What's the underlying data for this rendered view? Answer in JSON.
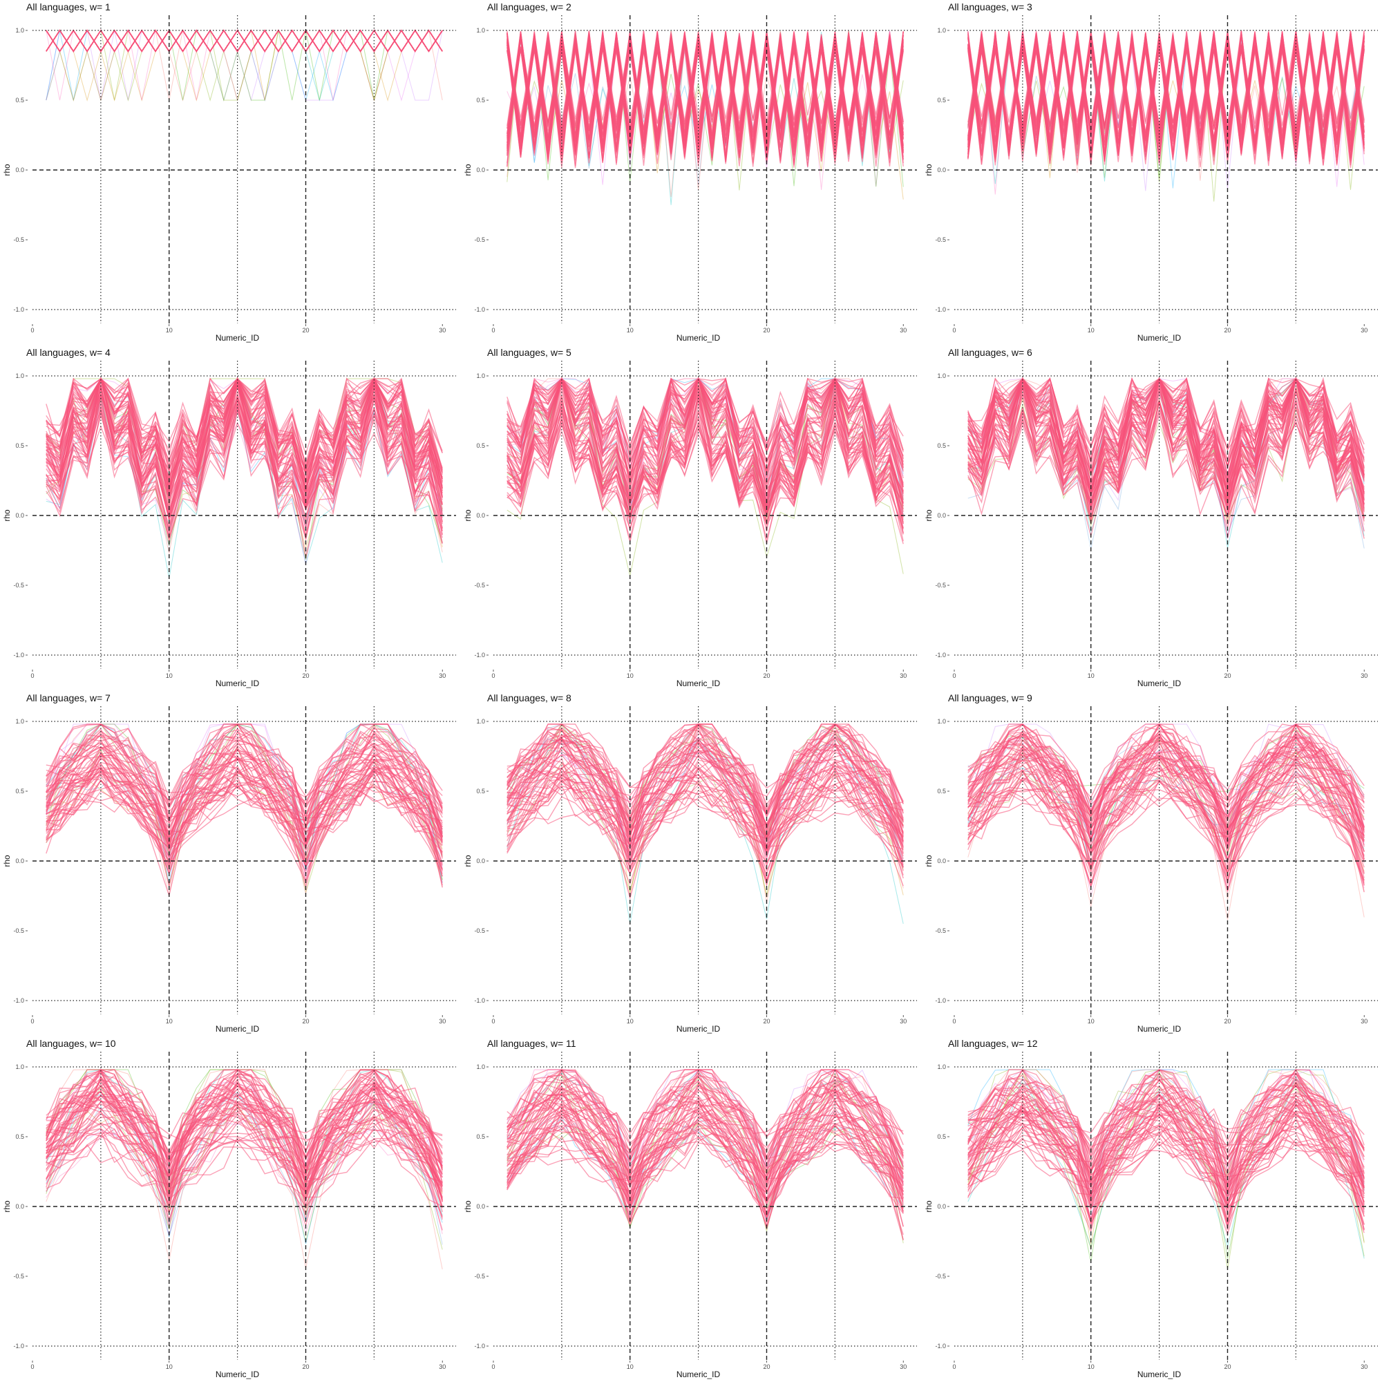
{
  "chart_data": [
    {
      "type": "line",
      "title": "All languages, w= 1",
      "xlabel": "Numeric_ID",
      "ylabel": "rho",
      "xlim": [
        0,
        31
      ],
      "ylim": [
        -1.0,
        1.0
      ],
      "xticks": [
        "0",
        "10",
        "20",
        "30"
      ],
      "yticks": [
        "-1.0",
        "-0.5",
        "0.0",
        "0.5",
        "1.0"
      ],
      "x": [
        1,
        30
      ],
      "w": 1
    },
    {
      "type": "line",
      "title": "All languages, w= 2",
      "xlabel": "Numeric_ID",
      "ylabel": "rho",
      "xlim": [
        0,
        31
      ],
      "ylim": [
        -1.0,
        1.0
      ],
      "xticks": [
        "0",
        "10",
        "20",
        "30"
      ],
      "yticks": [
        "-1.0",
        "-0.5",
        "0.0",
        "0.5",
        "1.0"
      ],
      "x": [
        1,
        30
      ],
      "w": 2
    },
    {
      "type": "line",
      "title": "All languages, w= 3",
      "xlabel": "Numeric_ID",
      "ylabel": "rho",
      "xlim": [
        0,
        31
      ],
      "ylim": [
        -1.0,
        1.0
      ],
      "xticks": [
        "0",
        "10",
        "20",
        "30"
      ],
      "yticks": [
        "-1.0",
        "-0.5",
        "0.0",
        "0.5",
        "1.0"
      ],
      "x": [
        1,
        30
      ],
      "w": 3
    },
    {
      "type": "line",
      "title": "All languages, w= 4",
      "xlabel": "Numeric_ID",
      "ylabel": "rho",
      "xlim": [
        0,
        31
      ],
      "ylim": [
        -1.0,
        1.0
      ],
      "xticks": [
        "0",
        "10",
        "20",
        "30"
      ],
      "yticks": [
        "-1.0",
        "-0.5",
        "0.0",
        "0.5",
        "1.0"
      ],
      "x": [
        1,
        30
      ],
      "w": 4
    },
    {
      "type": "line",
      "title": "All languages, w= 5",
      "xlabel": "Numeric_ID",
      "ylabel": "rho",
      "xlim": [
        0,
        31
      ],
      "ylim": [
        -1.0,
        1.0
      ],
      "xticks": [
        "0",
        "10",
        "20",
        "30"
      ],
      "yticks": [
        "-1.0",
        "-0.5",
        "0.0",
        "0.5",
        "1.0"
      ],
      "x": [
        1,
        30
      ],
      "w": 5
    },
    {
      "type": "line",
      "title": "All languages, w= 6",
      "xlabel": "Numeric_ID",
      "ylabel": "rho",
      "xlim": [
        0,
        31
      ],
      "ylim": [
        -1.0,
        1.0
      ],
      "xticks": [
        "0",
        "10",
        "20",
        "30"
      ],
      "yticks": [
        "-1.0",
        "-0.5",
        "0.0",
        "0.5",
        "1.0"
      ],
      "x": [
        1,
        30
      ],
      "w": 6
    },
    {
      "type": "line",
      "title": "All languages, w= 7",
      "xlabel": "Numeric_ID",
      "ylabel": "rho",
      "xlim": [
        0,
        31
      ],
      "ylim": [
        -1.0,
        1.0
      ],
      "xticks": [
        "0",
        "10",
        "20",
        "30"
      ],
      "yticks": [
        "-1.0",
        "-0.5",
        "0.0",
        "0.5",
        "1.0"
      ],
      "x": [
        1,
        30
      ],
      "w": 7
    },
    {
      "type": "line",
      "title": "All languages, w= 8",
      "xlabel": "Numeric_ID",
      "ylabel": "rho",
      "xlim": [
        0,
        31
      ],
      "ylim": [
        -1.0,
        1.0
      ],
      "xticks": [
        "0",
        "10",
        "20",
        "30"
      ],
      "yticks": [
        "-1.0",
        "-0.5",
        "0.0",
        "0.5",
        "1.0"
      ],
      "x": [
        1,
        30
      ],
      "w": 8
    },
    {
      "type": "line",
      "title": "All languages, w= 9",
      "xlabel": "Numeric_ID",
      "ylabel": "rho",
      "xlim": [
        0,
        31
      ],
      "ylim": [
        -1.0,
        1.0
      ],
      "xticks": [
        "0",
        "10",
        "20",
        "30"
      ],
      "yticks": [
        "-1.0",
        "-0.5",
        "0.0",
        "0.5",
        "1.0"
      ],
      "x": [
        1,
        30
      ],
      "w": 9
    },
    {
      "type": "line",
      "title": "All languages, w= 10",
      "xlabel": "Numeric_ID",
      "ylabel": "rho",
      "xlim": [
        0,
        31
      ],
      "ylim": [
        -1.0,
        1.0
      ],
      "xticks": [
        "0",
        "10",
        "20",
        "30"
      ],
      "yticks": [
        "-1.0",
        "-0.5",
        "0.0",
        "0.5",
        "1.0"
      ],
      "x": [
        1,
        30
      ],
      "w": 10
    },
    {
      "type": "line",
      "title": "All languages, w= 11",
      "xlabel": "Numeric_ID",
      "ylabel": "rho",
      "xlim": [
        0,
        31
      ],
      "ylim": [
        -1.0,
        1.0
      ],
      "xticks": [
        "0",
        "10",
        "20",
        "30"
      ],
      "yticks": [
        "-1.0",
        "-0.5",
        "0.0",
        "0.5",
        "1.0"
      ],
      "x": [
        1,
        30
      ],
      "w": 11
    },
    {
      "type": "line",
      "title": "All languages, w= 12",
      "xlabel": "Numeric_ID",
      "ylabel": "rho",
      "xlim": [
        0,
        31
      ],
      "ylim": [
        -1.0,
        1.0
      ],
      "xticks": [
        "0",
        "10",
        "20",
        "30"
      ],
      "yticks": [
        "-1.0",
        "-0.5",
        "0.0",
        "0.5",
        "1.0"
      ],
      "x": [
        1,
        30
      ],
      "w": 12
    }
  ],
  "reference_lines": {
    "horizontal_dashed": [
      0.0
    ],
    "horizontal_dotted": [
      -1.0,
      1.0
    ],
    "vertical_dashed": [
      10,
      20
    ],
    "vertical_dotted": [
      5,
      15,
      25
    ]
  },
  "colors": {
    "dominant_series": "#f8527a",
    "series_palette": [
      "#f8766d",
      "#7cae00",
      "#00bfc4",
      "#c77cff",
      "#5e9fdc",
      "#e76bf3",
      "#39b600",
      "#d89000",
      "#00a9ff",
      "#ff62bc"
    ],
    "reference_line": "#222222",
    "tick_text": "#4d4d4d",
    "background": "#ffffff"
  }
}
